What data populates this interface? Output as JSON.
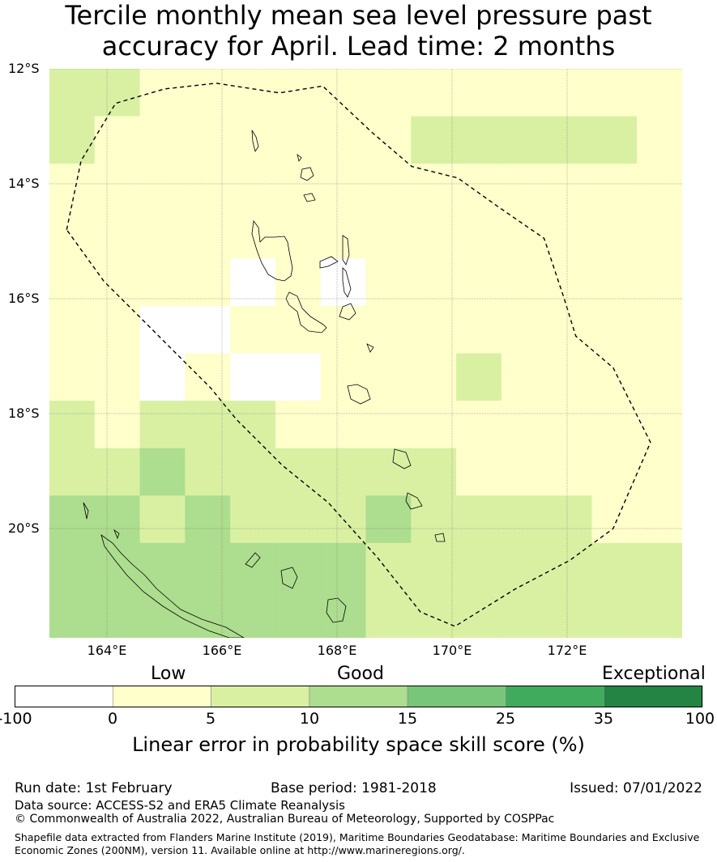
{
  "title_line1": "Tercile monthly mean sea level pressure past",
  "title_line2": "accuracy for April. Lead time: 2 months",
  "map": {
    "lon_range": [
      163.0,
      174.0
    ],
    "lat_range": [
      -21.9,
      -12.0
    ],
    "lat_labels": [
      "12°S",
      "14°S",
      "16°S",
      "18°S",
      "20°S"
    ],
    "lon_labels": [
      "164°E",
      "166°E",
      "168°E",
      "170°E",
      "172°E"
    ],
    "gridlines": true,
    "cell_size_deg": 0.833,
    "grid_cols": 14,
    "grid_rows": 12,
    "grid_levels": [
      [
        2,
        2,
        1,
        1,
        1,
        1,
        1,
        1,
        1,
        1,
        1,
        1,
        1,
        1
      ],
      [
        2,
        1,
        1,
        1,
        1,
        1,
        1,
        1,
        2,
        2,
        2,
        2,
        2,
        1
      ],
      [
        1,
        1,
        1,
        1,
        1,
        1,
        1,
        1,
        1,
        1,
        1,
        1,
        1,
        1
      ],
      [
        1,
        1,
        1,
        1,
        1,
        1,
        1,
        1,
        1,
        1,
        1,
        1,
        1,
        1
      ],
      [
        1,
        1,
        1,
        1,
        0,
        1,
        0,
        1,
        1,
        1,
        1,
        1,
        1,
        1
      ],
      [
        1,
        1,
        0,
        0,
        1,
        1,
        1,
        1,
        1,
        1,
        1,
        1,
        1,
        1
      ],
      [
        1,
        1,
        0,
        1,
        0,
        0,
        1,
        1,
        1,
        2,
        1,
        1,
        1,
        1
      ],
      [
        2,
        1,
        2,
        2,
        2,
        1,
        1,
        1,
        1,
        1,
        1,
        1,
        1,
        1
      ],
      [
        2,
        2,
        3,
        2,
        2,
        2,
        2,
        2,
        2,
        1,
        1,
        1,
        1,
        1
      ],
      [
        3,
        3,
        2,
        3,
        2,
        2,
        2,
        3,
        2,
        2,
        2,
        2,
        1,
        1
      ],
      [
        3,
        3,
        3,
        3,
        3,
        3,
        3,
        2,
        2,
        2,
        2,
        2,
        2,
        2
      ],
      [
        3,
        3,
        3,
        3,
        3,
        3,
        3,
        2,
        2,
        2,
        2,
        2,
        2,
        2
      ]
    ],
    "eez_boundary_lonlat": [
      [
        163.3,
        -14.8
      ],
      [
        163.55,
        -13.6
      ],
      [
        164.15,
        -12.6
      ],
      [
        165.0,
        -12.35
      ],
      [
        165.9,
        -12.25
      ],
      [
        167.0,
        -12.42
      ],
      [
        167.75,
        -12.3
      ],
      [
        168.6,
        -13.1
      ],
      [
        169.3,
        -13.7
      ],
      [
        170.1,
        -13.9
      ],
      [
        170.8,
        -14.4
      ],
      [
        171.6,
        -14.95
      ],
      [
        171.95,
        -16.0
      ],
      [
        172.15,
        -16.65
      ],
      [
        172.8,
        -17.2
      ],
      [
        173.45,
        -18.5
      ],
      [
        172.8,
        -20.0
      ],
      [
        172.05,
        -20.55
      ],
      [
        171.1,
        -21.05
      ],
      [
        170.05,
        -21.7
      ],
      [
        169.45,
        -21.45
      ],
      [
        168.7,
        -20.5
      ],
      [
        167.85,
        -19.55
      ],
      [
        167.05,
        -18.9
      ],
      [
        166.25,
        -18.1
      ],
      [
        165.8,
        -17.55
      ],
      [
        165.25,
        -17.0
      ],
      [
        164.55,
        -16.3
      ],
      [
        163.95,
        -15.7
      ],
      [
        163.3,
        -14.8
      ]
    ]
  },
  "colorbar": {
    "category_labels": {
      "low": "Low",
      "good": "Good",
      "exceptional": "Exceptional"
    },
    "tick_labels": [
      "-100",
      "0",
      "5",
      "10",
      "15",
      "25",
      "35",
      "100"
    ],
    "colors": [
      "#ffffff",
      "#ffffcc",
      "#d9f0a3",
      "#addd8e",
      "#78c679",
      "#41ab5d",
      "#238443"
    ],
    "title": "Linear error in probability space skill score (%)"
  },
  "footer": {
    "run_date": "Run date: 1st February",
    "base_period": "Base period: 1981-2018",
    "issued": "Issued: 07/01/2022",
    "data_source": "Data source: ACCESS-S2 and ERA5 Climate Reanalysis",
    "copyright": "© Commonwealth of Australia 2022, Australian Bureau of Meteorology, Supported by COSPPac",
    "shapefile_note": "Shapefile data extracted from Flanders Marine Institute (2019), Maritime Boundaries Geodatabase: Maritime Boundaries and Exclusive Economic Zones (200NM), version 11. Available online at http://www.marineregions.org/."
  }
}
